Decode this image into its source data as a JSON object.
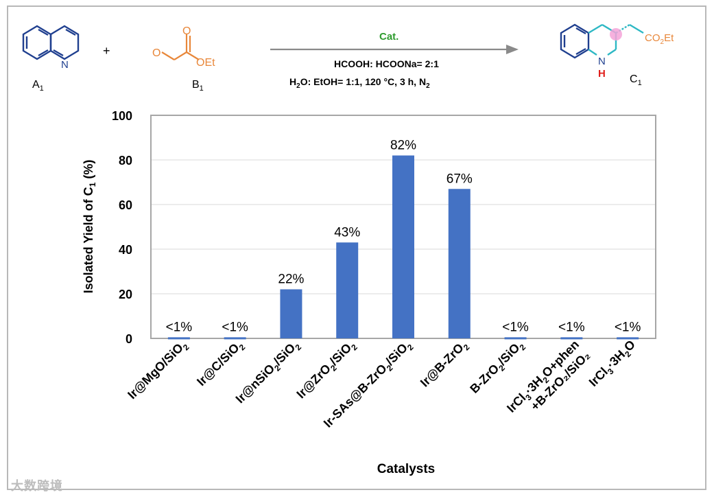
{
  "scheme": {
    "reactant_a": "A",
    "reactant_a_sub": "1",
    "plus": "+",
    "reactant_b": "B",
    "reactant_b_sub": "1",
    "product": "C",
    "product_sub": "1",
    "catalyst_label": "Cat.",
    "condition_1": "HCOOH: HCOONa= 2:1",
    "condition_2_pre": "H",
    "condition_2_sub": "2",
    "condition_2_mid": "O: EtOH= 1:1, 120 °C, 3 h, N",
    "condition_2_sub2": "2",
    "quinoline_n": "N",
    "ester_oet": "OEt",
    "product_nh_n": "N",
    "product_nh_h": "H",
    "product_ester": "CO",
    "product_ester_sub": "2",
    "product_ester_end": "Et",
    "colors": {
      "catalyst": "#2e9b2e",
      "reactant_b": "#e8873a",
      "quinoline": "#1f3f8f",
      "nh_h": "#e0201c",
      "radical": "#f4a3d8"
    }
  },
  "watermark": "大数跨境",
  "chart_data": {
    "type": "bar",
    "categories": [
      [
        "Ir@MgO/SiO",
        "2",
        ""
      ],
      [
        "Ir@C/SiO",
        "2",
        ""
      ],
      [
        "Ir@nSiO",
        "2",
        "/SiO",
        "2"
      ],
      [
        "Ir@ZrO",
        "2",
        "/SiO",
        "2"
      ],
      [
        "Ir-SAs@B-ZrO",
        "2",
        "/SiO",
        "2"
      ],
      [
        "Ir@B-ZrO",
        "2",
        ""
      ],
      [
        "B-ZrO",
        "2",
        "/SiO",
        "2"
      ],
      [
        "IrCl",
        "3",
        "·3H",
        "2",
        "O+phen"
      ],
      [
        "IrCl",
        "3",
        "·3H",
        "2",
        "O"
      ]
    ],
    "category_line2": [
      "",
      "",
      "",
      "",
      "",
      "",
      "",
      "+B-ZrO₂/SiO₂",
      ""
    ],
    "values": [
      0.5,
      0.5,
      22,
      43,
      82,
      67,
      0.5,
      0.5,
      0.5
    ],
    "data_labels": [
      "<1%",
      "<1%",
      "22%",
      "43%",
      "82%",
      "67%",
      "<1%",
      "<1%",
      "<1%"
    ],
    "yticks": [
      "0",
      "20",
      "40",
      "60",
      "80",
      "100"
    ],
    "ylim": [
      0,
      100
    ],
    "ylabel": "Isolated Yield of C",
    "ylabel_sub": "1",
    "ylabel_end": " (%)",
    "xlabel": "Catalysts",
    "bar_color": "#4472c4",
    "grid": true
  }
}
